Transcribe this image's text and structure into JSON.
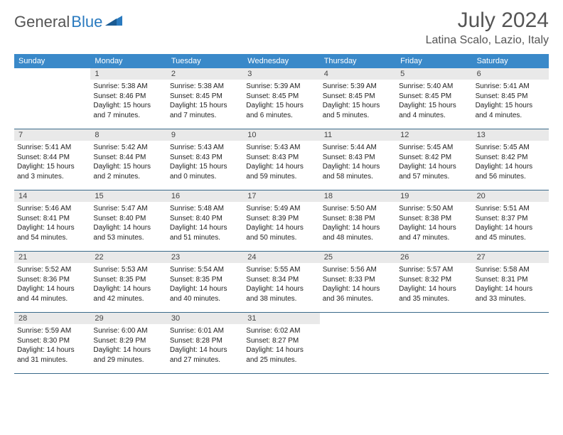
{
  "logo": {
    "text_left": "General",
    "text_right": "Blue"
  },
  "title": "July 2024",
  "location": "Latina Scalo, Lazio, Italy",
  "colors": {
    "header_bg": "#3a89c9",
    "header_text": "#ffffff",
    "daynum_bg": "#e9e9e9",
    "border": "#3a6a8a",
    "title_color": "#555555"
  },
  "weekdays": [
    "Sunday",
    "Monday",
    "Tuesday",
    "Wednesday",
    "Thursday",
    "Friday",
    "Saturday"
  ],
  "start_offset": 1,
  "days": [
    {
      "n": 1,
      "sunrise": "5:38 AM",
      "sunset": "8:46 PM",
      "dl_h": 15,
      "dl_m": 7
    },
    {
      "n": 2,
      "sunrise": "5:38 AM",
      "sunset": "8:45 PM",
      "dl_h": 15,
      "dl_m": 7
    },
    {
      "n": 3,
      "sunrise": "5:39 AM",
      "sunset": "8:45 PM",
      "dl_h": 15,
      "dl_m": 6
    },
    {
      "n": 4,
      "sunrise": "5:39 AM",
      "sunset": "8:45 PM",
      "dl_h": 15,
      "dl_m": 5
    },
    {
      "n": 5,
      "sunrise": "5:40 AM",
      "sunset": "8:45 PM",
      "dl_h": 15,
      "dl_m": 4
    },
    {
      "n": 6,
      "sunrise": "5:41 AM",
      "sunset": "8:45 PM",
      "dl_h": 15,
      "dl_m": 4
    },
    {
      "n": 7,
      "sunrise": "5:41 AM",
      "sunset": "8:44 PM",
      "dl_h": 15,
      "dl_m": 3
    },
    {
      "n": 8,
      "sunrise": "5:42 AM",
      "sunset": "8:44 PM",
      "dl_h": 15,
      "dl_m": 2
    },
    {
      "n": 9,
      "sunrise": "5:43 AM",
      "sunset": "8:43 PM",
      "dl_h": 15,
      "dl_m": 0
    },
    {
      "n": 10,
      "sunrise": "5:43 AM",
      "sunset": "8:43 PM",
      "dl_h": 14,
      "dl_m": 59
    },
    {
      "n": 11,
      "sunrise": "5:44 AM",
      "sunset": "8:43 PM",
      "dl_h": 14,
      "dl_m": 58
    },
    {
      "n": 12,
      "sunrise": "5:45 AM",
      "sunset": "8:42 PM",
      "dl_h": 14,
      "dl_m": 57
    },
    {
      "n": 13,
      "sunrise": "5:45 AM",
      "sunset": "8:42 PM",
      "dl_h": 14,
      "dl_m": 56
    },
    {
      "n": 14,
      "sunrise": "5:46 AM",
      "sunset": "8:41 PM",
      "dl_h": 14,
      "dl_m": 54
    },
    {
      "n": 15,
      "sunrise": "5:47 AM",
      "sunset": "8:40 PM",
      "dl_h": 14,
      "dl_m": 53
    },
    {
      "n": 16,
      "sunrise": "5:48 AM",
      "sunset": "8:40 PM",
      "dl_h": 14,
      "dl_m": 51
    },
    {
      "n": 17,
      "sunrise": "5:49 AM",
      "sunset": "8:39 PM",
      "dl_h": 14,
      "dl_m": 50
    },
    {
      "n": 18,
      "sunrise": "5:50 AM",
      "sunset": "8:38 PM",
      "dl_h": 14,
      "dl_m": 48
    },
    {
      "n": 19,
      "sunrise": "5:50 AM",
      "sunset": "8:38 PM",
      "dl_h": 14,
      "dl_m": 47
    },
    {
      "n": 20,
      "sunrise": "5:51 AM",
      "sunset": "8:37 PM",
      "dl_h": 14,
      "dl_m": 45
    },
    {
      "n": 21,
      "sunrise": "5:52 AM",
      "sunset": "8:36 PM",
      "dl_h": 14,
      "dl_m": 44
    },
    {
      "n": 22,
      "sunrise": "5:53 AM",
      "sunset": "8:35 PM",
      "dl_h": 14,
      "dl_m": 42
    },
    {
      "n": 23,
      "sunrise": "5:54 AM",
      "sunset": "8:35 PM",
      "dl_h": 14,
      "dl_m": 40
    },
    {
      "n": 24,
      "sunrise": "5:55 AM",
      "sunset": "8:34 PM",
      "dl_h": 14,
      "dl_m": 38
    },
    {
      "n": 25,
      "sunrise": "5:56 AM",
      "sunset": "8:33 PM",
      "dl_h": 14,
      "dl_m": 36
    },
    {
      "n": 26,
      "sunrise": "5:57 AM",
      "sunset": "8:32 PM",
      "dl_h": 14,
      "dl_m": 35
    },
    {
      "n": 27,
      "sunrise": "5:58 AM",
      "sunset": "8:31 PM",
      "dl_h": 14,
      "dl_m": 33
    },
    {
      "n": 28,
      "sunrise": "5:59 AM",
      "sunset": "8:30 PM",
      "dl_h": 14,
      "dl_m": 31
    },
    {
      "n": 29,
      "sunrise": "6:00 AM",
      "sunset": "8:29 PM",
      "dl_h": 14,
      "dl_m": 29
    },
    {
      "n": 30,
      "sunrise": "6:01 AM",
      "sunset": "8:28 PM",
      "dl_h": 14,
      "dl_m": 27
    },
    {
      "n": 31,
      "sunrise": "6:02 AM",
      "sunset": "8:27 PM",
      "dl_h": 14,
      "dl_m": 25
    }
  ]
}
